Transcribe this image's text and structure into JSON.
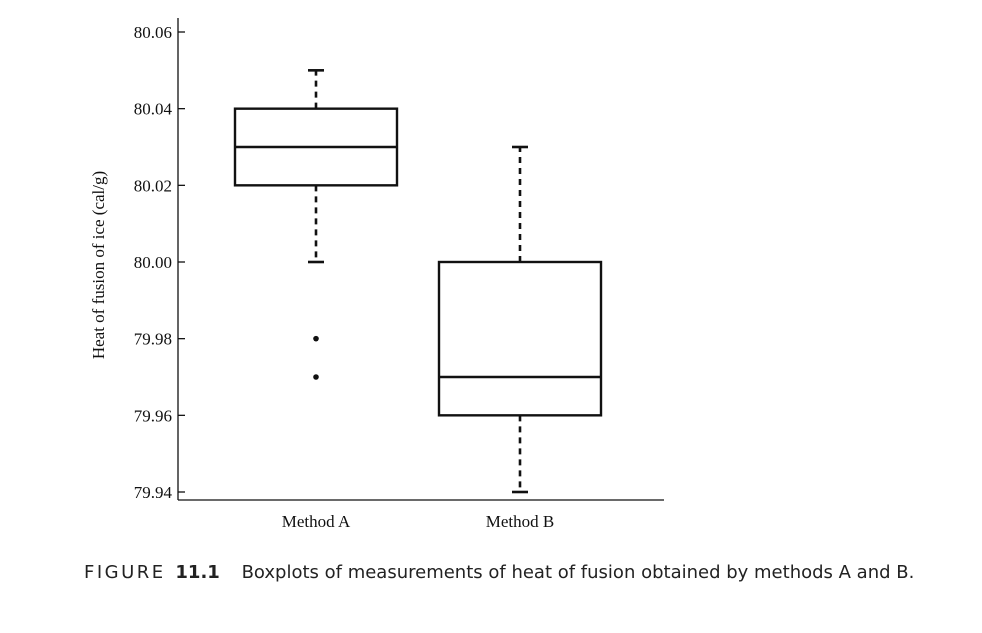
{
  "chart_data": {
    "type": "boxplot",
    "ylabel": "Heat of fusion of ice (cal/g)",
    "ylim": [
      79.94,
      80.06
    ],
    "yticks": [
      "80.06",
      "80.04",
      "80.02",
      "80.00",
      "79.98",
      "79.96",
      "79.94"
    ],
    "ytick_values": [
      80.06,
      80.04,
      80.02,
      80.0,
      79.98,
      79.96,
      79.94
    ],
    "categories": [
      "Method A",
      "Method B"
    ],
    "boxes": [
      {
        "category": "Method A",
        "whisker_low": 80.0,
        "q1": 80.02,
        "median": 80.03,
        "q3": 80.04,
        "whisker_high": 80.05,
        "outliers": [
          79.98,
          79.97
        ]
      },
      {
        "category": "Method B",
        "whisker_low": 79.94,
        "q1": 79.96,
        "median": 79.97,
        "q3": 80.0,
        "whisker_high": 80.03,
        "outliers": []
      }
    ]
  },
  "caption": {
    "figure_word": "FIGURE",
    "figure_number": "11.1",
    "text": "Boxplots of measurements of heat of fusion obtained by methods A and B."
  }
}
